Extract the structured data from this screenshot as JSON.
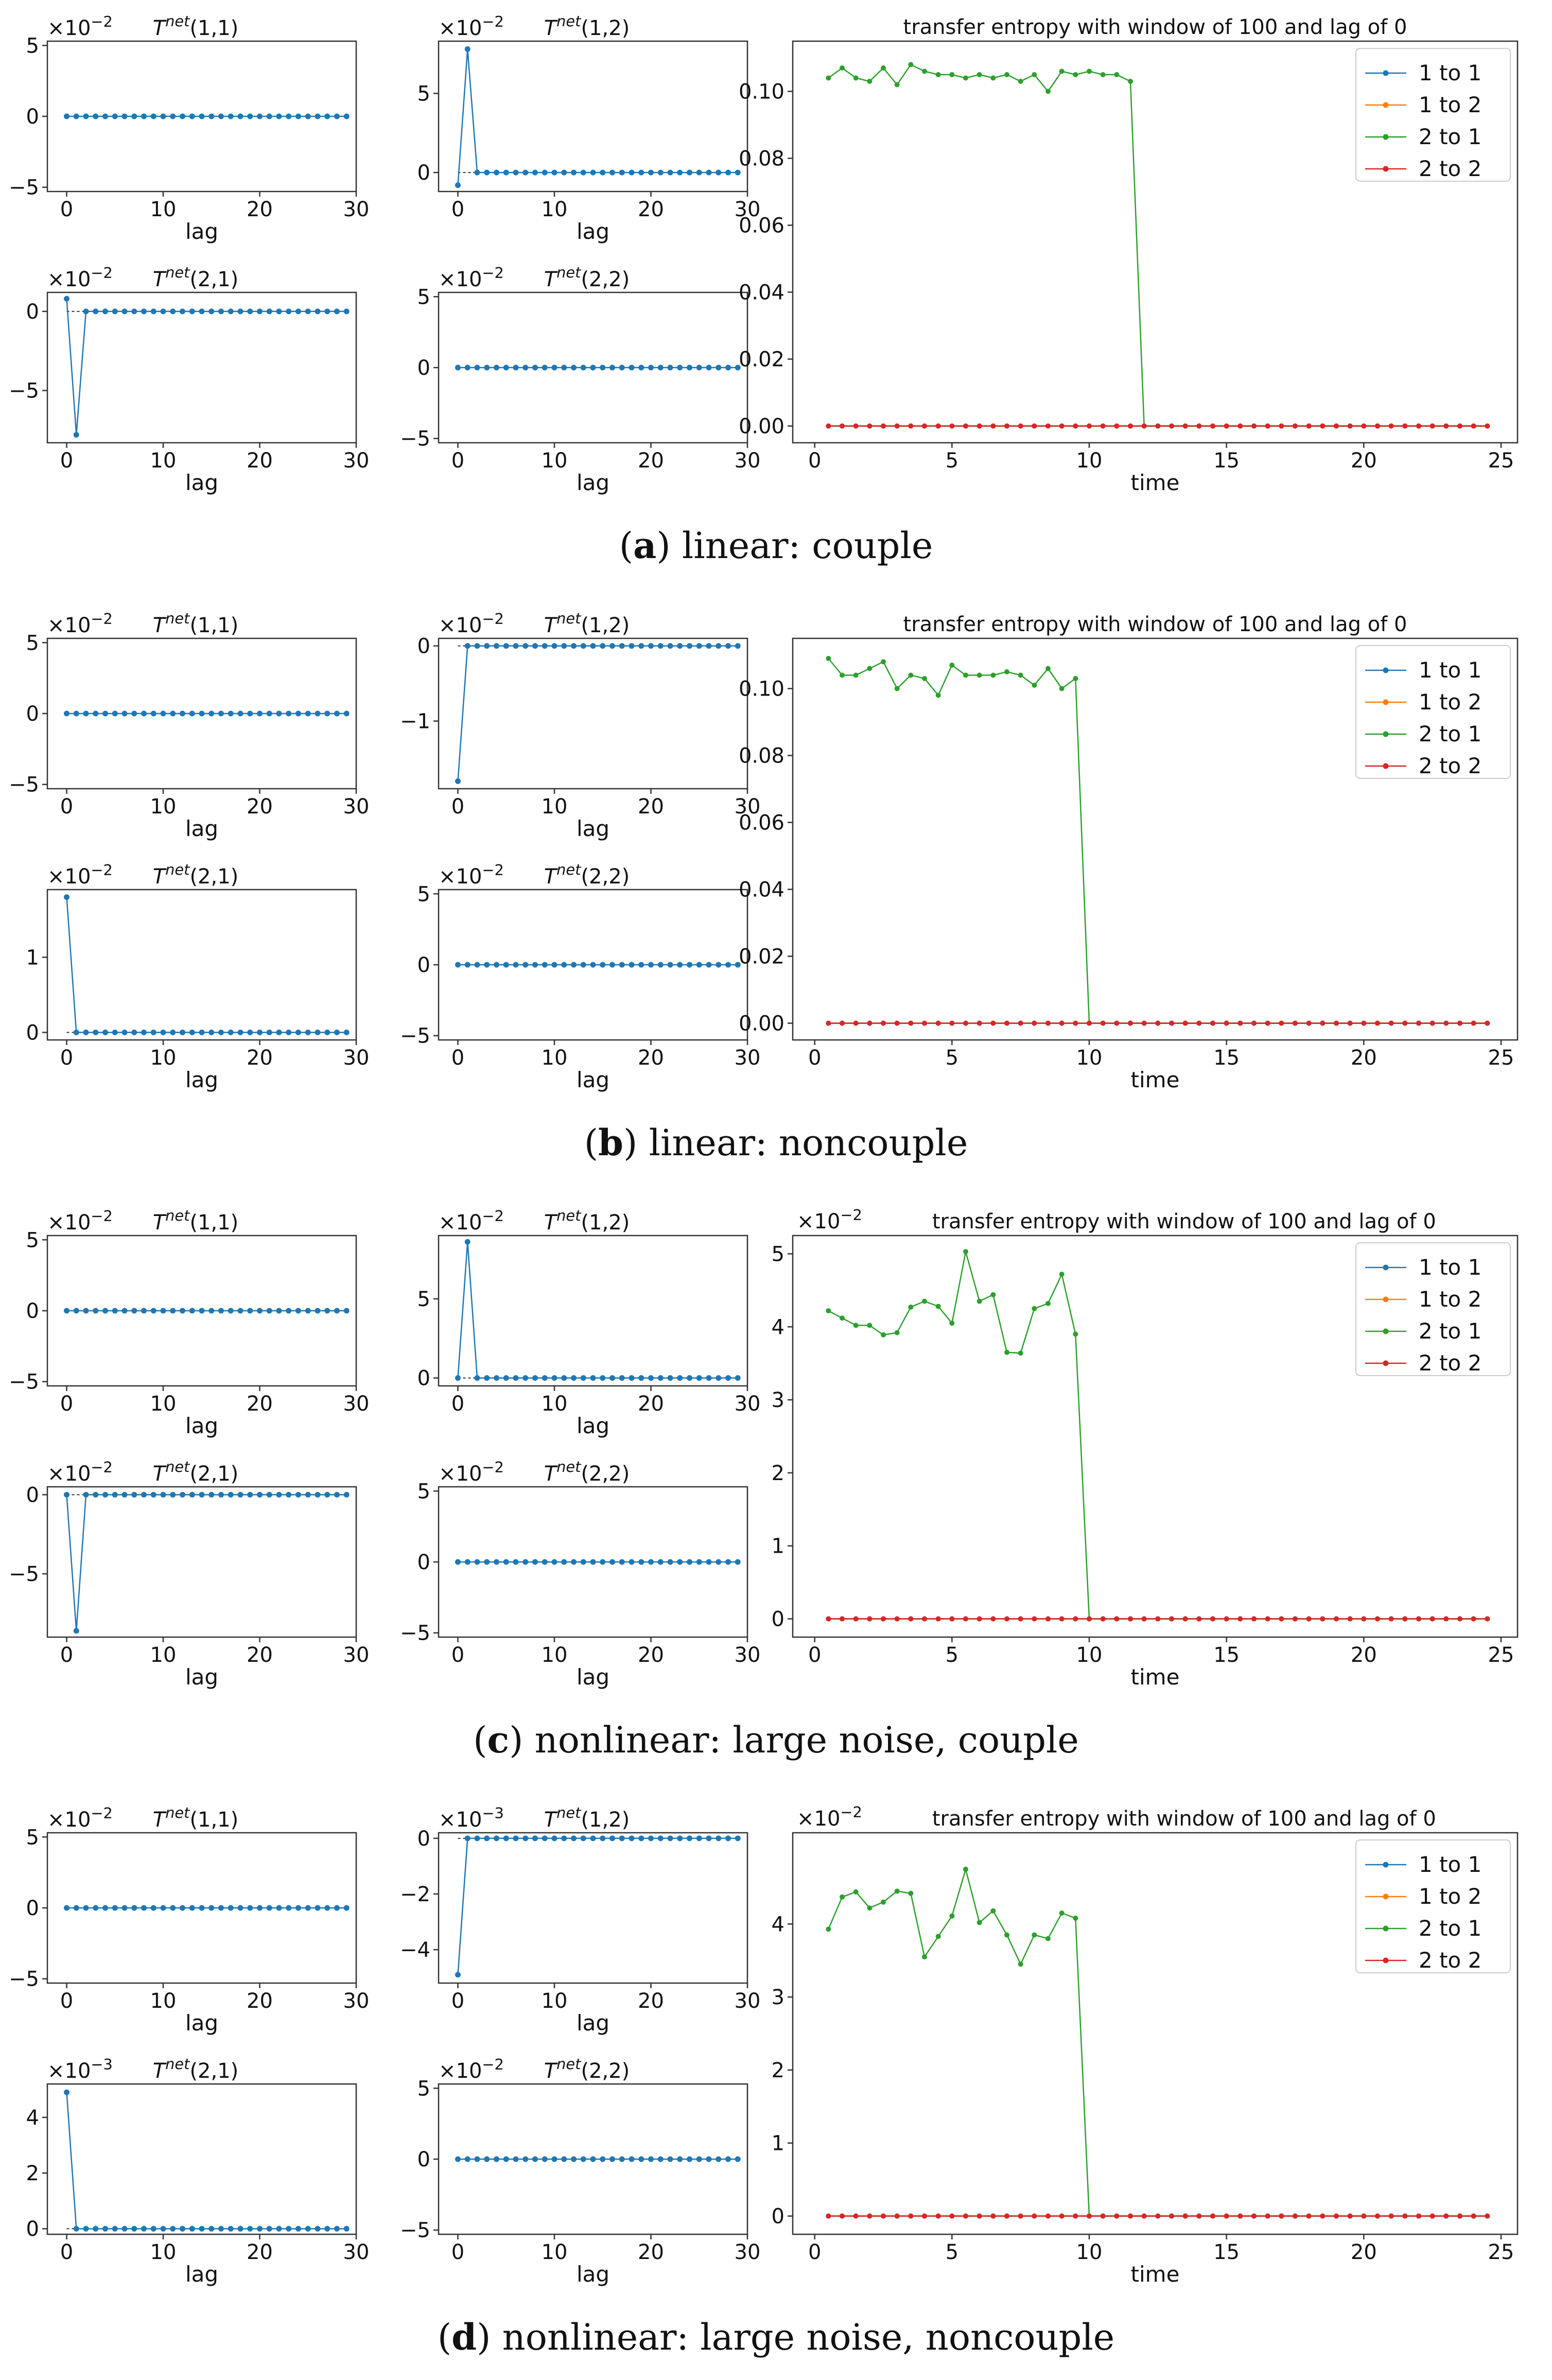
{
  "figure": {
    "shared": {
      "lag_xlabel": "lag",
      "time_xlabel": "time",
      "te_title": "transfer entropy with window of 100 and lag of 0",
      "legend": [
        "1 to 1",
        "1 to 2",
        "2 to 1",
        "2 to 2"
      ],
      "series_colors": [
        "#1f77b4",
        "#ff7f0e",
        "#2ca02c",
        "#d62728"
      ],
      "small_titles": [
        "T^net(1,1)",
        "T^net(1,2)",
        "T^net(2,1)",
        "T^net(2,2)"
      ]
    },
    "rows": [
      {
        "caption": {
          "letter": "a",
          "text": "linear: couple"
        },
        "small_offsets": [
          "×10^-2",
          "×10^-2",
          "×10^-2",
          "×10^-2"
        ],
        "te_offset": ""
      },
      {
        "caption": {
          "letter": "b",
          "text": "linear: noncouple"
        },
        "small_offsets": [
          "×10^-2",
          "×10^-2",
          "×10^-2",
          "×10^-2"
        ],
        "te_offset": ""
      },
      {
        "caption": {
          "letter": "c",
          "text": "nonlinear: large noise, couple"
        },
        "small_offsets": [
          "×10^-2",
          "×10^-2",
          "×10^-2",
          "×10^-2"
        ],
        "te_offset": "×10^-2"
      },
      {
        "caption": {
          "letter": "d",
          "text": "nonlinear: large noise, noncouple"
        },
        "small_offsets": [
          "×10^-2",
          "×10^-3",
          "×10^-3",
          "×10^-2"
        ],
        "te_offset": "×10^-2"
      }
    ]
  },
  "chart_data": [
    {
      "type": "line",
      "panel": "a",
      "title": "T^net(1,1)",
      "xlabel": "lag",
      "ylabel": "",
      "xlim": [
        -2,
        30
      ],
      "ylim": [
        -5.3,
        5.3
      ],
      "xticks": [
        0,
        10,
        20,
        30
      ],
      "yticks": [
        -5,
        0,
        5
      ],
      "offset": "×10^-2",
      "x_range": [
        0,
        29
      ],
      "y": [
        0
      ]
    },
    {
      "type": "line",
      "panel": "a",
      "title": "T^net(1,2)",
      "xlabel": "lag",
      "ylabel": "",
      "xlim": [
        -2,
        30
      ],
      "ylim": [
        -1.2,
        8.3
      ],
      "xticks": [
        0,
        10,
        20,
        30
      ],
      "yticks": [
        0,
        5
      ],
      "offset": "×10^-2",
      "x_range": [
        0,
        29
      ],
      "y": [
        -0.8,
        7.8,
        0
      ]
    },
    {
      "type": "line",
      "panel": "a",
      "title": "T^net(2,1)",
      "xlabel": "lag",
      "ylabel": "",
      "xlim": [
        -2,
        30
      ],
      "ylim": [
        -8.3,
        1.2
      ],
      "xticks": [
        0,
        10,
        20,
        30
      ],
      "yticks": [
        -5,
        0
      ],
      "offset": "×10^-2",
      "x_range": [
        0,
        29
      ],
      "y": [
        0.8,
        -7.8,
        0
      ]
    },
    {
      "type": "line",
      "panel": "a",
      "title": "T^net(2,2)",
      "xlabel": "lag",
      "ylabel": "",
      "xlim": [
        -2,
        30
      ],
      "ylim": [
        -5.3,
        5.3
      ],
      "xticks": [
        0,
        10,
        20,
        30
      ],
      "yticks": [
        -5,
        0,
        5
      ],
      "offset": "×10^-2",
      "x_range": [
        0,
        29
      ],
      "y": [
        0
      ]
    },
    {
      "type": "line",
      "panel": "a",
      "title": "transfer entropy with window of 100 and lag of 0",
      "xlabel": "time",
      "ylabel": "",
      "xlim": [
        -0.8,
        25.6
      ],
      "ylim": [
        -0.005,
        0.115
      ],
      "xticks": [
        0,
        5,
        10,
        15,
        20,
        25
      ],
      "yticks": [
        0,
        0.02,
        0.04,
        0.06,
        0.08,
        0.1
      ],
      "ytick_labels": [
        "0.00",
        "0.02",
        "0.04",
        "0.06",
        "0.08",
        "0.10"
      ],
      "offset": "",
      "x_start": 0.5,
      "x_step": 0.5,
      "x_count": 49,
      "series": [
        {
          "name": "1 to 1",
          "values": [
            0
          ]
        },
        {
          "name": "1 to 2",
          "values": [
            0
          ]
        },
        {
          "name": "2 to 1",
          "values": [
            0.104,
            0.107,
            0.104,
            0.103,
            0.107,
            0.102,
            0.108,
            0.106,
            0.105,
            0.105,
            0.104,
            0.105,
            0.104,
            0.105,
            0.103,
            0.105,
            0.1,
            0.106,
            0.105,
            0.106,
            0.105,
            0.105,
            0.103,
            0.0
          ]
        },
        {
          "name": "2 to 2",
          "values": [
            0
          ]
        }
      ]
    },
    {
      "type": "line",
      "panel": "b",
      "title": "T^net(1,1)",
      "xlabel": "lag",
      "ylabel": "",
      "xlim": [
        -2,
        30
      ],
      "ylim": [
        -5.3,
        5.3
      ],
      "xticks": [
        0,
        10,
        20,
        30
      ],
      "yticks": [
        -5,
        0,
        5
      ],
      "offset": "×10^-2",
      "x_range": [
        0,
        29
      ],
      "y": [
        0
      ]
    },
    {
      "type": "line",
      "panel": "b",
      "title": "T^net(1,2)",
      "xlabel": "lag",
      "ylabel": "",
      "xlim": [
        -2,
        30
      ],
      "ylim": [
        -1.9,
        0.1
      ],
      "xticks": [
        0,
        10,
        20,
        30
      ],
      "yticks": [
        -1,
        0
      ],
      "offset": "×10^-2",
      "x_range": [
        0,
        29
      ],
      "y": [
        -1.8,
        0
      ]
    },
    {
      "type": "line",
      "panel": "b",
      "title": "T^net(2,1)",
      "xlabel": "lag",
      "ylabel": "",
      "xlim": [
        -2,
        30
      ],
      "ylim": [
        -0.1,
        1.9
      ],
      "xticks": [
        0,
        10,
        20,
        30
      ],
      "yticks": [
        0,
        1
      ],
      "offset": "×10^-2",
      "x_range": [
        0,
        29
      ],
      "y": [
        1.8,
        0
      ]
    },
    {
      "type": "line",
      "panel": "b",
      "title": "T^net(2,2)",
      "xlabel": "lag",
      "ylabel": "",
      "xlim": [
        -2,
        30
      ],
      "ylim": [
        -5.3,
        5.3
      ],
      "xticks": [
        0,
        10,
        20,
        30
      ],
      "yticks": [
        -5,
        0,
        5
      ],
      "offset": "×10^-2",
      "x_range": [
        0,
        29
      ],
      "y": [
        0
      ]
    },
    {
      "type": "line",
      "panel": "b",
      "title": "transfer entropy with window of 100 and lag of 0",
      "xlabel": "time",
      "ylabel": "",
      "xlim": [
        -0.8,
        25.6
      ],
      "ylim": [
        -0.005,
        0.115
      ],
      "xticks": [
        0,
        5,
        10,
        15,
        20,
        25
      ],
      "yticks": [
        0,
        0.02,
        0.04,
        0.06,
        0.08,
        0.1
      ],
      "ytick_labels": [
        "0.00",
        "0.02",
        "0.04",
        "0.06",
        "0.08",
        "0.10"
      ],
      "offset": "",
      "x_start": 0.5,
      "x_step": 0.5,
      "x_count": 49,
      "series": [
        {
          "name": "1 to 1",
          "values": [
            0
          ]
        },
        {
          "name": "1 to 2",
          "values": [
            0
          ]
        },
        {
          "name": "2 to 1",
          "values": [
            0.109,
            0.104,
            0.104,
            0.106,
            0.108,
            0.1,
            0.104,
            0.103,
            0.098,
            0.107,
            0.104,
            0.104,
            0.104,
            0.105,
            0.104,
            0.101,
            0.106,
            0.1,
            0.103,
            0.0
          ]
        },
        {
          "name": "2 to 2",
          "values": [
            0
          ]
        }
      ]
    },
    {
      "type": "line",
      "panel": "c",
      "title": "T^net(1,1)",
      "xlabel": "lag",
      "ylabel": "",
      "xlim": [
        -2,
        30
      ],
      "ylim": [
        -5.3,
        5.3
      ],
      "xticks": [
        0,
        10,
        20,
        30
      ],
      "yticks": [
        -5,
        0,
        5
      ],
      "offset": "×10^-2",
      "x_range": [
        0,
        29
      ],
      "y": [
        0
      ]
    },
    {
      "type": "line",
      "panel": "c",
      "title": "T^net(1,2)",
      "xlabel": "lag",
      "ylabel": "",
      "xlim": [
        -2,
        30
      ],
      "ylim": [
        -0.5,
        9.0
      ],
      "xticks": [
        0,
        10,
        20,
        30
      ],
      "yticks": [
        0,
        5
      ],
      "offset": "×10^-2",
      "x_range": [
        0,
        29
      ],
      "y": [
        0,
        8.6,
        0
      ]
    },
    {
      "type": "line",
      "panel": "c",
      "title": "T^net(2,1)",
      "xlabel": "lag",
      "ylabel": "",
      "xlim": [
        -2,
        30
      ],
      "ylim": [
        -9.0,
        0.5
      ],
      "xticks": [
        0,
        10,
        20,
        30
      ],
      "yticks": [
        -5,
        0
      ],
      "offset": "×10^-2",
      "x_range": [
        0,
        29
      ],
      "y": [
        0,
        -8.6,
        0
      ]
    },
    {
      "type": "line",
      "panel": "c",
      "title": "T^net(2,2)",
      "xlabel": "lag",
      "ylabel": "",
      "xlim": [
        -2,
        30
      ],
      "ylim": [
        -5.3,
        5.3
      ],
      "xticks": [
        0,
        10,
        20,
        30
      ],
      "yticks": [
        -5,
        0,
        5
      ],
      "offset": "×10^-2",
      "x_range": [
        0,
        29
      ],
      "y": [
        0
      ]
    },
    {
      "type": "line",
      "panel": "c",
      "title": "transfer entropy with window of 100 and lag of 0",
      "xlabel": "time",
      "ylabel": "",
      "xlim": [
        -0.8,
        25.6
      ],
      "ylim": [
        -0.25,
        5.25
      ],
      "xticks": [
        0,
        5,
        10,
        15,
        20,
        25
      ],
      "yticks": [
        0,
        1,
        2,
        3,
        4,
        5
      ],
      "ytick_labels": [
        "0",
        "1",
        "2",
        "3",
        "4",
        "5"
      ],
      "offset": "×10^-2",
      "x_start": 0.5,
      "x_step": 0.5,
      "x_count": 49,
      "series": [
        {
          "name": "1 to 1",
          "values": [
            0
          ]
        },
        {
          "name": "1 to 2",
          "values": [
            0
          ]
        },
        {
          "name": "2 to 1",
          "values": [
            4.22,
            4.12,
            4.02,
            4.02,
            3.89,
            3.92,
            4.27,
            4.35,
            4.28,
            4.05,
            5.03,
            4.35,
            4.44,
            3.65,
            3.64,
            4.25,
            4.32,
            4.72,
            3.9,
            0.0
          ]
        },
        {
          "name": "2 to 2",
          "values": [
            0
          ]
        }
      ]
    },
    {
      "type": "line",
      "panel": "d",
      "title": "T^net(1,1)",
      "xlabel": "lag",
      "ylabel": "",
      "xlim": [
        -2,
        30
      ],
      "ylim": [
        -5.3,
        5.3
      ],
      "xticks": [
        0,
        10,
        20,
        30
      ],
      "yticks": [
        -5,
        0,
        5
      ],
      "offset": "×10^-2",
      "x_range": [
        0,
        29
      ],
      "y": [
        0
      ]
    },
    {
      "type": "line",
      "panel": "d",
      "title": "T^net(1,2)",
      "xlabel": "lag",
      "ylabel": "",
      "xlim": [
        -2,
        30
      ],
      "ylim": [
        -5.2,
        0.2
      ],
      "xticks": [
        0,
        10,
        20,
        30
      ],
      "yticks": [
        -4,
        -2,
        0
      ],
      "offset": "×10^-3",
      "x_range": [
        0,
        29
      ],
      "y": [
        -4.9,
        0
      ]
    },
    {
      "type": "line",
      "panel": "d",
      "title": "T^net(2,1)",
      "xlabel": "lag",
      "ylabel": "",
      "xlim": [
        -2,
        30
      ],
      "ylim": [
        -0.2,
        5.2
      ],
      "xticks": [
        0,
        10,
        20,
        30
      ],
      "yticks": [
        0,
        2,
        4
      ],
      "offset": "×10^-3",
      "x_range": [
        0,
        29
      ],
      "y": [
        4.9,
        0
      ]
    },
    {
      "type": "line",
      "panel": "d",
      "title": "T^net(2,2)",
      "xlabel": "lag",
      "ylabel": "",
      "xlim": [
        -2,
        30
      ],
      "ylim": [
        -5.3,
        5.3
      ],
      "xticks": [
        0,
        10,
        20,
        30
      ],
      "yticks": [
        -5,
        0,
        5
      ],
      "offset": "×10^-2",
      "x_range": [
        0,
        29
      ],
      "y": [
        0
      ]
    },
    {
      "type": "line",
      "panel": "d",
      "title": "transfer entropy with window of 100 and lag of 0",
      "xlabel": "time",
      "ylabel": "",
      "xlim": [
        -0.8,
        25.6
      ],
      "ylim": [
        -0.25,
        5.25
      ],
      "xticks": [
        0,
        5,
        10,
        15,
        20,
        25
      ],
      "yticks": [
        0,
        1,
        2,
        3,
        4
      ],
      "ytick_labels": [
        "0",
        "1",
        "2",
        "3",
        "4"
      ],
      "offset": "×10^-2",
      "x_start": 0.5,
      "x_step": 0.5,
      "x_count": 49,
      "series": [
        {
          "name": "1 to 1",
          "values": [
            0
          ]
        },
        {
          "name": "1 to 2",
          "values": [
            0
          ]
        },
        {
          "name": "2 to 1",
          "values": [
            3.93,
            4.37,
            4.44,
            4.22,
            4.3,
            4.45,
            4.42,
            3.55,
            3.83,
            4.11,
            4.75,
            4.02,
            4.18,
            3.85,
            3.45,
            3.85,
            3.8,
            4.15,
            4.08,
            0.0
          ]
        },
        {
          "name": "2 to 2",
          "values": [
            0
          ]
        }
      ]
    }
  ]
}
